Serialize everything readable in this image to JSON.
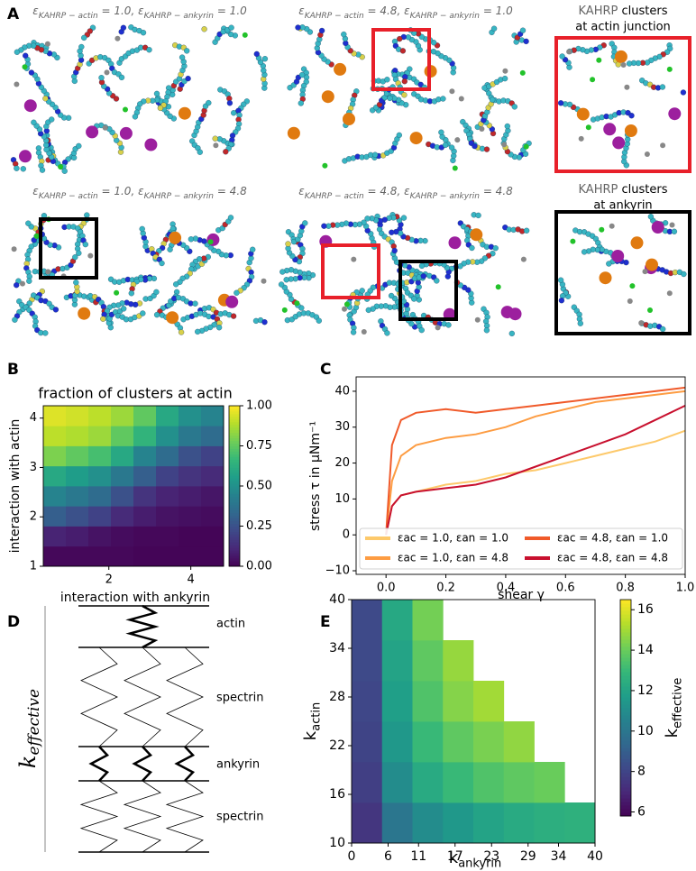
{
  "panel_labels": [
    "A",
    "B",
    "C",
    "D",
    "E"
  ],
  "panel_a": {
    "captions": [
      [
        {
          "text": "ε"
        },
        {
          "text": "KAHRP − actin",
          "sub": true
        },
        {
          "text": " = 1.0, ε"
        },
        {
          "text": "KAHRP − ankyrin",
          "sub": true
        },
        {
          "text": " = 1.0"
        }
      ],
      [
        {
          "text": "ε"
        },
        {
          "text": "KAHRP − actin",
          "sub": true
        },
        {
          "text": " = 4.8, ε"
        },
        {
          "text": "KAHRP − ankyrin",
          "sub": true
        },
        {
          "text": " = 1.0"
        }
      ],
      [
        {
          "text": "ε"
        },
        {
          "text": "KAHRP − actin",
          "sub": true
        },
        {
          "text": " = 1.0, ε"
        },
        {
          "text": "KAHRP − ankyrin",
          "sub": true
        },
        {
          "text": " = 4.8"
        }
      ],
      [
        {
          "text": "ε"
        },
        {
          "text": "KAHRP − actin",
          "sub": true
        },
        {
          "text": " = 4.8, ε"
        },
        {
          "text": "KAHRP − ankyrin",
          "sub": true
        },
        {
          "text": " = 4.8"
        }
      ]
    ],
    "insets": [
      {
        "line1": [
          {
            "text": "KAHRP",
            "muted": true
          },
          {
            "text": " clusters"
          }
        ],
        "line2": "at actin junction"
      },
      {
        "line1": [
          {
            "text": "KAHRP",
            "muted": true
          },
          {
            "text": " clusters"
          }
        ],
        "line2": "at ankyrin"
      }
    ]
  },
  "panel_d": {
    "labels": [
      "actin",
      "spectrin",
      "ankyrin",
      "spectrin"
    ],
    "k_label": {
      "main": "k",
      "sub": "effective"
    }
  },
  "chart_data": [
    {
      "type": "heatmap",
      "title": "fraction of clusters at actin",
      "xlabel": "interaction with ankyrin",
      "ylabel": "interaction with actin",
      "xlim": [
        0.4,
        4.8
      ],
      "ylim": [
        1,
        4.25
      ],
      "xticks": [
        2,
        4
      ],
      "yticks": [
        1,
        2,
        3,
        4
      ],
      "colormap": "viridis",
      "clim": [
        0,
        1
      ],
      "cticks": [
        {
          "value": 0,
          "label": "0.00"
        },
        {
          "value": 0.25,
          "label": "0.25"
        },
        {
          "value": 0.5,
          "label": "0.50"
        },
        {
          "value": 0.75,
          "label": "0.75"
        },
        {
          "value": 1,
          "label": "1.00"
        }
      ],
      "values": [
        [
          0.02,
          0.02,
          0.02,
          0.02,
          0.01,
          0.01,
          0.01,
          0.01
        ],
        [
          0.1,
          0.08,
          0.05,
          0.03,
          0.02,
          0.02,
          0.01,
          0.01
        ],
        [
          0.3,
          0.25,
          0.2,
          0.12,
          0.08,
          0.05,
          0.04,
          0.03
        ],
        [
          0.45,
          0.4,
          0.35,
          0.25,
          0.15,
          0.1,
          0.08,
          0.06
        ],
        [
          0.6,
          0.55,
          0.5,
          0.4,
          0.3,
          0.2,
          0.15,
          0.12
        ],
        [
          0.8,
          0.75,
          0.7,
          0.6,
          0.45,
          0.35,
          0.25,
          0.2
        ],
        [
          0.9,
          0.88,
          0.85,
          0.75,
          0.65,
          0.5,
          0.4,
          0.35
        ],
        [
          0.95,
          0.93,
          0.9,
          0.85,
          0.75,
          0.6,
          0.5,
          0.45
        ]
      ]
    },
    {
      "type": "line",
      "xlabel": "shear γ",
      "ylabel": "stress τ in μNm⁻¹",
      "xlim": [
        -0.1,
        1.0
      ],
      "ylim": [
        -11,
        44
      ],
      "xticks": [
        {
          "value": 0,
          "label": "0.0"
        },
        0.2,
        0.4,
        0.6,
        0.8,
        {
          "value": 1,
          "label": "1.0"
        }
      ],
      "yticks": [
        {
          "value": -10,
          "label": "−10"
        },
        0,
        10,
        20,
        30,
        40
      ],
      "legend": "lower center",
      "x": [
        0,
        0.02,
        0.05,
        0.1,
        0.2,
        0.3,
        0.4,
        0.5,
        0.6,
        0.7,
        0.8,
        0.9,
        1.0
      ],
      "series": [
        {
          "name": "εac = 1.0, εan = 1.0",
          "color": "#fdc96b",
          "values": [
            0,
            8,
            11,
            12,
            14,
            15,
            17,
            18,
            20,
            22,
            24,
            26,
            29
          ]
        },
        {
          "name": "εac = 1.0, εan = 4.8",
          "color": "#fd9c42",
          "values": [
            0,
            15,
            22,
            25,
            27,
            28,
            30,
            33,
            35,
            37,
            38,
            39,
            40
          ]
        },
        {
          "name": "εac = 4.8, εan = 1.0",
          "color": "#f05a2a",
          "values": [
            0,
            25,
            32,
            34,
            35,
            34,
            35,
            36,
            37,
            38,
            39,
            40,
            41
          ]
        },
        {
          "name": "εac = 4.8, εan = 4.8",
          "color": "#c8102e",
          "values": [
            0,
            8,
            11,
            12,
            13,
            14,
            16,
            19,
            22,
            25,
            28,
            32,
            36
          ]
        }
      ]
    },
    {
      "type": "heatmap",
      "xlabel": {
        "main": "k",
        "sub": "ankyrin"
      },
      "ylabel": {
        "main": "k",
        "sub": "actin"
      },
      "clabel": {
        "main": "k",
        "sub": "effective"
      },
      "xlim": [
        0,
        40
      ],
      "ylim": [
        10,
        40
      ],
      "xticks": [
        0,
        6,
        11,
        17,
        23,
        29,
        34,
        40
      ],
      "yticks": [
        10,
        16,
        22,
        28,
        34,
        40
      ],
      "colormap": "viridis",
      "clim": [
        5.8,
        16.5
      ],
      "cticks": [
        6,
        8,
        10,
        12,
        14,
        16
      ],
      "values": [
        [
          7.5,
          10,
          11,
          11.5,
          12,
          12.3,
          12.5,
          12.6
        ],
        [
          7.8,
          11,
          12.3,
          13,
          13.5,
          13.8,
          14,
          null
        ],
        [
          8,
          11.5,
          13,
          13.8,
          14.3,
          14.7,
          null,
          null
        ],
        [
          8.1,
          11.8,
          13.5,
          14.5,
          15,
          null,
          null,
          null
        ],
        [
          8.2,
          12,
          13.8,
          14.8,
          null,
          null,
          null,
          null
        ],
        [
          8.2,
          12.2,
          14.2,
          null,
          null,
          null,
          null,
          null
        ]
      ]
    }
  ]
}
